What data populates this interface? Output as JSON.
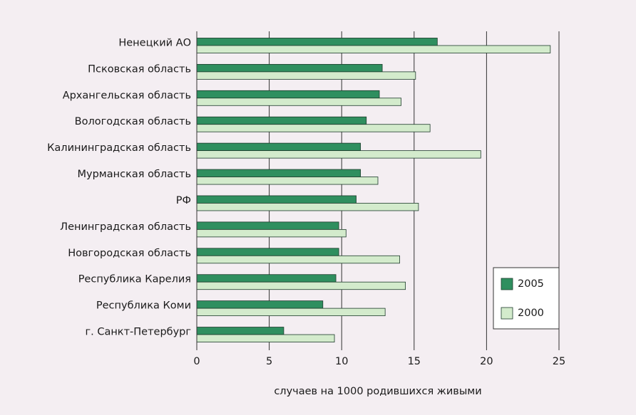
{
  "chart_data": {
    "type": "bar",
    "orientation": "horizontal",
    "x_label": "случаев на 1000 родившихся живыми",
    "categories": [
      "Ненецкий АО",
      "Псковская область",
      "Архангельская область",
      "Вологодская область",
      "Калининградская область",
      "Мурманская область",
      "РФ",
      "Ленинградская область",
      "Новгородская область",
      "Республика Карелия",
      "Республика Коми",
      "г.  Санкт-Петербург"
    ],
    "series": [
      {
        "name": "2005",
        "color": "#2f8f5f",
        "values": [
          16.6,
          12.8,
          12.6,
          11.7,
          11.3,
          11.3,
          11.0,
          9.8,
          9.8,
          9.6,
          8.7,
          6.0
        ]
      },
      {
        "name": "2000",
        "color": "#d3ebcc",
        "values": [
          24.4,
          15.1,
          14.1,
          16.1,
          19.6,
          12.5,
          15.3,
          10.3,
          14.0,
          14.4,
          13.0,
          9.5
        ]
      }
    ],
    "xlim": [
      0,
      25
    ],
    "xticks": [
      0,
      5,
      10,
      15,
      20,
      25
    ],
    "grid": true,
    "legend": "lower right"
  }
}
